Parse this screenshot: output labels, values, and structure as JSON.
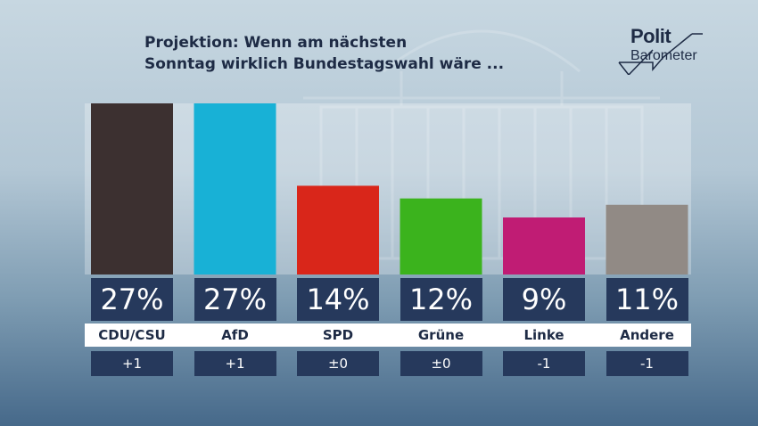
{
  "header": {
    "title_line1": "Projektion: Wenn am nächsten",
    "title_line2": "Sonntag wirklich Bundestagswahl wäre ..."
  },
  "logo": {
    "line1": "Polit",
    "line2": "Barometer"
  },
  "chart_data": {
    "type": "bar",
    "title": "Projektion: Wenn am nächsten Sonntag wirklich Bundestagswahl wäre ...",
    "categories": [
      "CDU/CSU",
      "AfD",
      "SPD",
      "Grüne",
      "Linke",
      "Andere"
    ],
    "values": [
      27,
      27,
      14,
      12,
      9,
      11
    ],
    "value_labels": [
      "27%",
      "27%",
      "14%",
      "12%",
      "9%",
      "11%"
    ],
    "changes": [
      "+1",
      "+1",
      "±0",
      "±0",
      "-1",
      "-1"
    ],
    "colors": [
      "#3c3030",
      "#18b1d6",
      "#d9261a",
      "#3bb31d",
      "#c01c74",
      "#918a85"
    ],
    "unit": "%",
    "ylim": [
      0,
      27
    ],
    "grid": false,
    "legend": "none"
  }
}
